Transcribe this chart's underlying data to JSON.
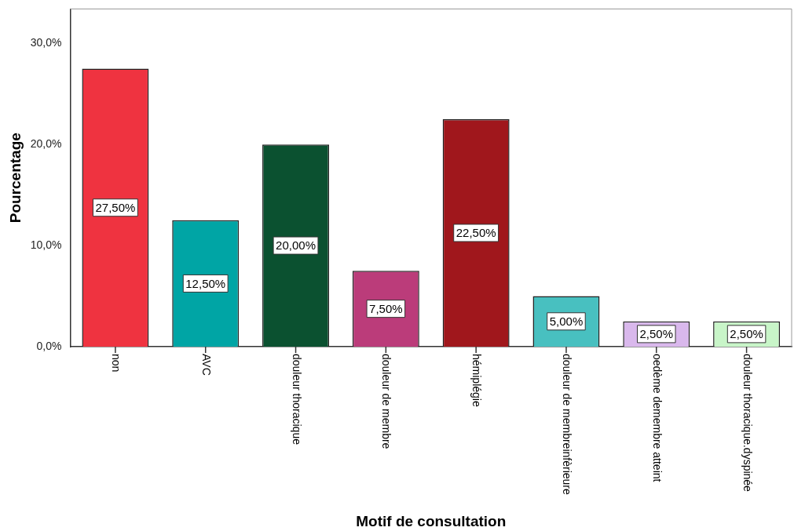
{
  "chart_data": {
    "type": "bar",
    "xlabel": "Motif de consultation",
    "ylabel": "Pourcentage",
    "categories": [
      "non",
      "AVC",
      "douleur thoracique",
      "douleur de membre",
      "hémiplégie",
      "douleur de membreinfèrieure",
      "oedème demembre atteint",
      "douleur thoracique.dyspinée"
    ],
    "values": [
      27.5,
      12.5,
      20,
      7.5,
      22.5,
      5,
      2.5,
      2.5
    ],
    "colors": [
      "#ef3340",
      "#00a5a5",
      "#0b5130",
      "#bb3c7a",
      "#a0171c",
      "#48c0c0",
      "#d9b8ec",
      "#c8f5c8"
    ],
    "value_labels": [
      "27,50%",
      "12,50%",
      "20,00%",
      "7,50%",
      "22,50%",
      "5,00%",
      "2,50%",
      "2,50%"
    ],
    "ylim": [
      0,
      33.4
    ],
    "yticks": [
      {
        "value": 0,
        "label": "0,0%"
      },
      {
        "value": 10,
        "label": "10,0%"
      },
      {
        "value": 20,
        "label": "20,0%"
      },
      {
        "value": 30,
        "label": "30,0%"
      }
    ],
    "grid": false,
    "legend": false
  }
}
